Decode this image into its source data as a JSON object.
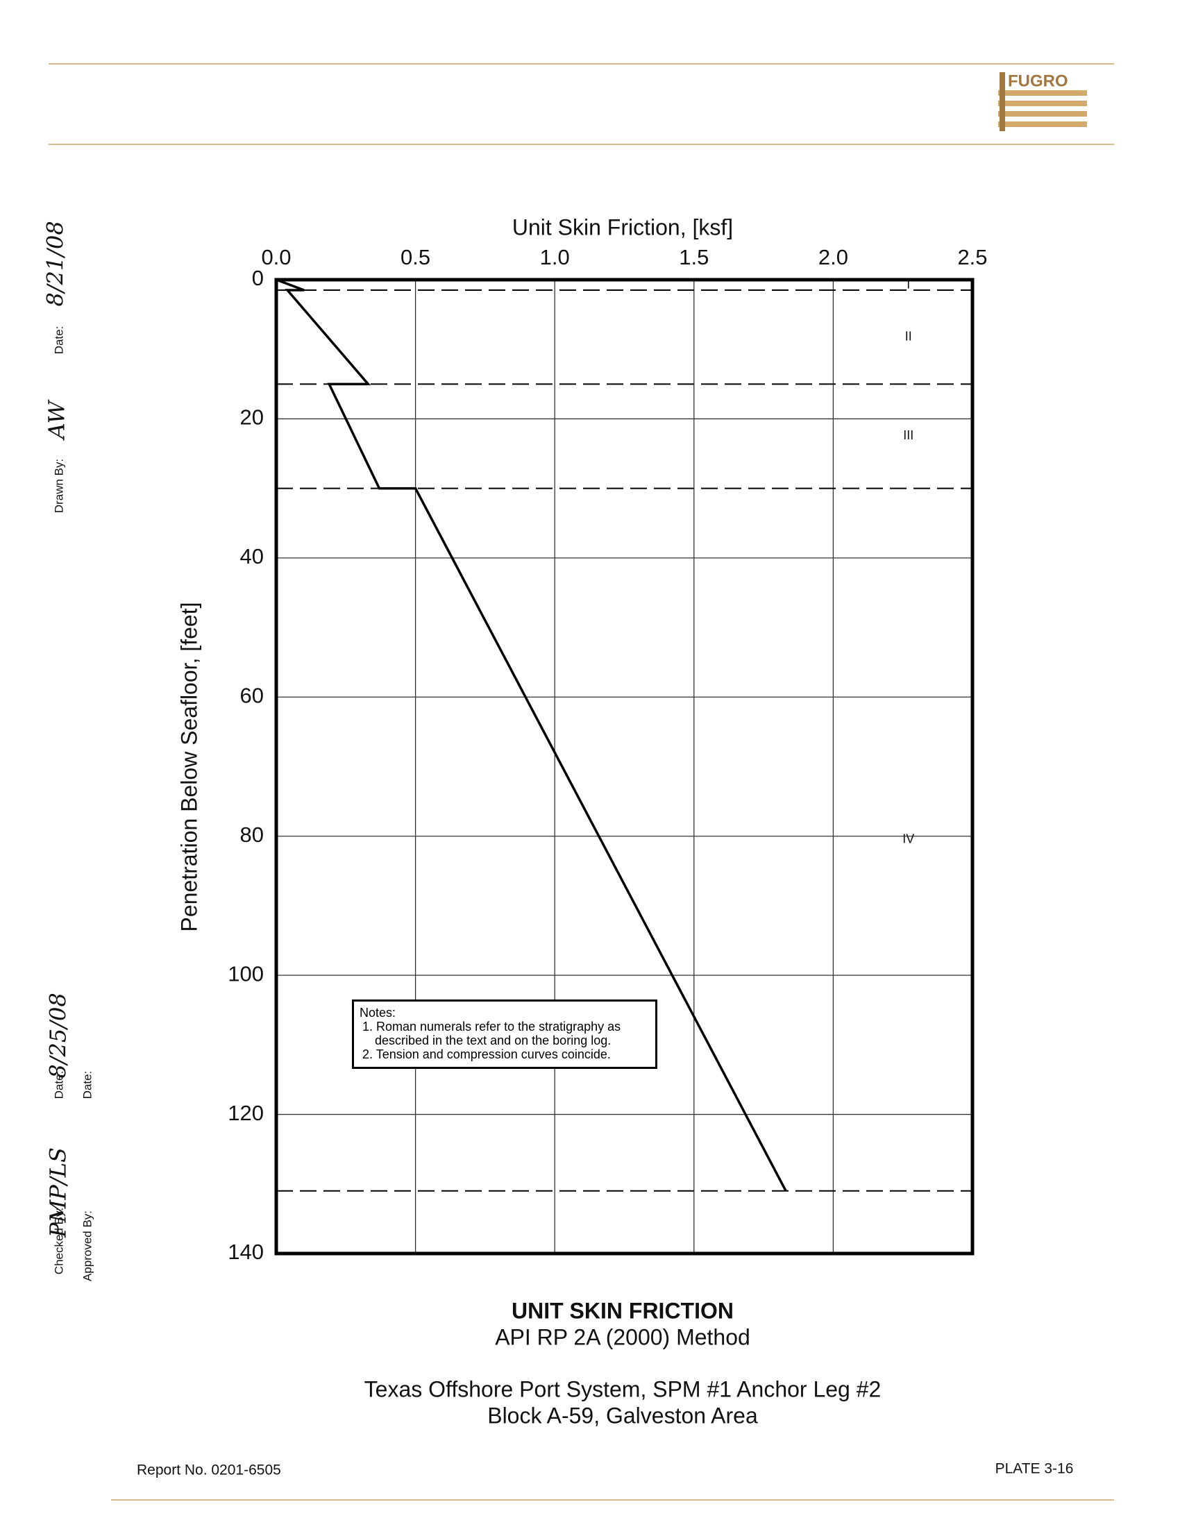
{
  "header": {
    "logo": "FUGRO"
  },
  "sidebar": {
    "drawn_date_label": "Date:",
    "drawn_date": "8/21/08",
    "drawn_by_label": "Drawn By:",
    "drawn_by": "AW",
    "checked_date_label": "Date:",
    "checked_date": "8/25/08",
    "checked_by_label": "Checked By:",
    "checked_by": "PMP/LS",
    "approved_date_label": "Date:",
    "approved_by_label": "Approved By:"
  },
  "chart_data": {
    "type": "line",
    "x_label": "Unit Skin Friction, [ksf]",
    "y_label": "Penetration Below Seafloor, [feet]",
    "values": [
      0,
      0.1,
      0.04,
      0.33,
      0.19,
      0.37,
      0.5,
      1.83
    ],
    "depth": [
      0,
      1.5,
      1.5,
      15,
      15,
      30,
      30,
      131
    ],
    "xlim": [
      0,
      2.5
    ],
    "xticks": [
      {
        "value": 0,
        "label": "0.0"
      },
      {
        "value": 0.5,
        "label": "0.5"
      },
      {
        "value": 1,
        "label": "1.0"
      },
      {
        "value": 1.5,
        "label": "1.5"
      },
      {
        "value": 2,
        "label": "2.0"
      },
      2.5
    ],
    "ylim": [
      0,
      140
    ],
    "yticks": [
      0,
      20,
      40,
      60,
      80,
      100,
      120,
      140
    ],
    "grid": true,
    "color": "#000000",
    "layer_boundaries": [
      1.5,
      15,
      30,
      131
    ],
    "layers": [
      "I",
      "II",
      "III",
      "IV"
    ],
    "notes": {
      "heading": "Notes:",
      "items": [
        "1. Roman numerals refer to the stratigraphy as described in the text and on the boring log.",
        "2. Tension and compression curves coincide."
      ]
    }
  },
  "footer": {
    "title": "UNIT SKIN FRICTION",
    "method": "API RP 2A (2000) Method",
    "project": "Texas Offshore Port System, SPM #1 Anchor Leg #2",
    "location": "Block A-59, Galveston Area",
    "report": "Report No. 0201-6505",
    "plate": "PLATE 3-16"
  }
}
